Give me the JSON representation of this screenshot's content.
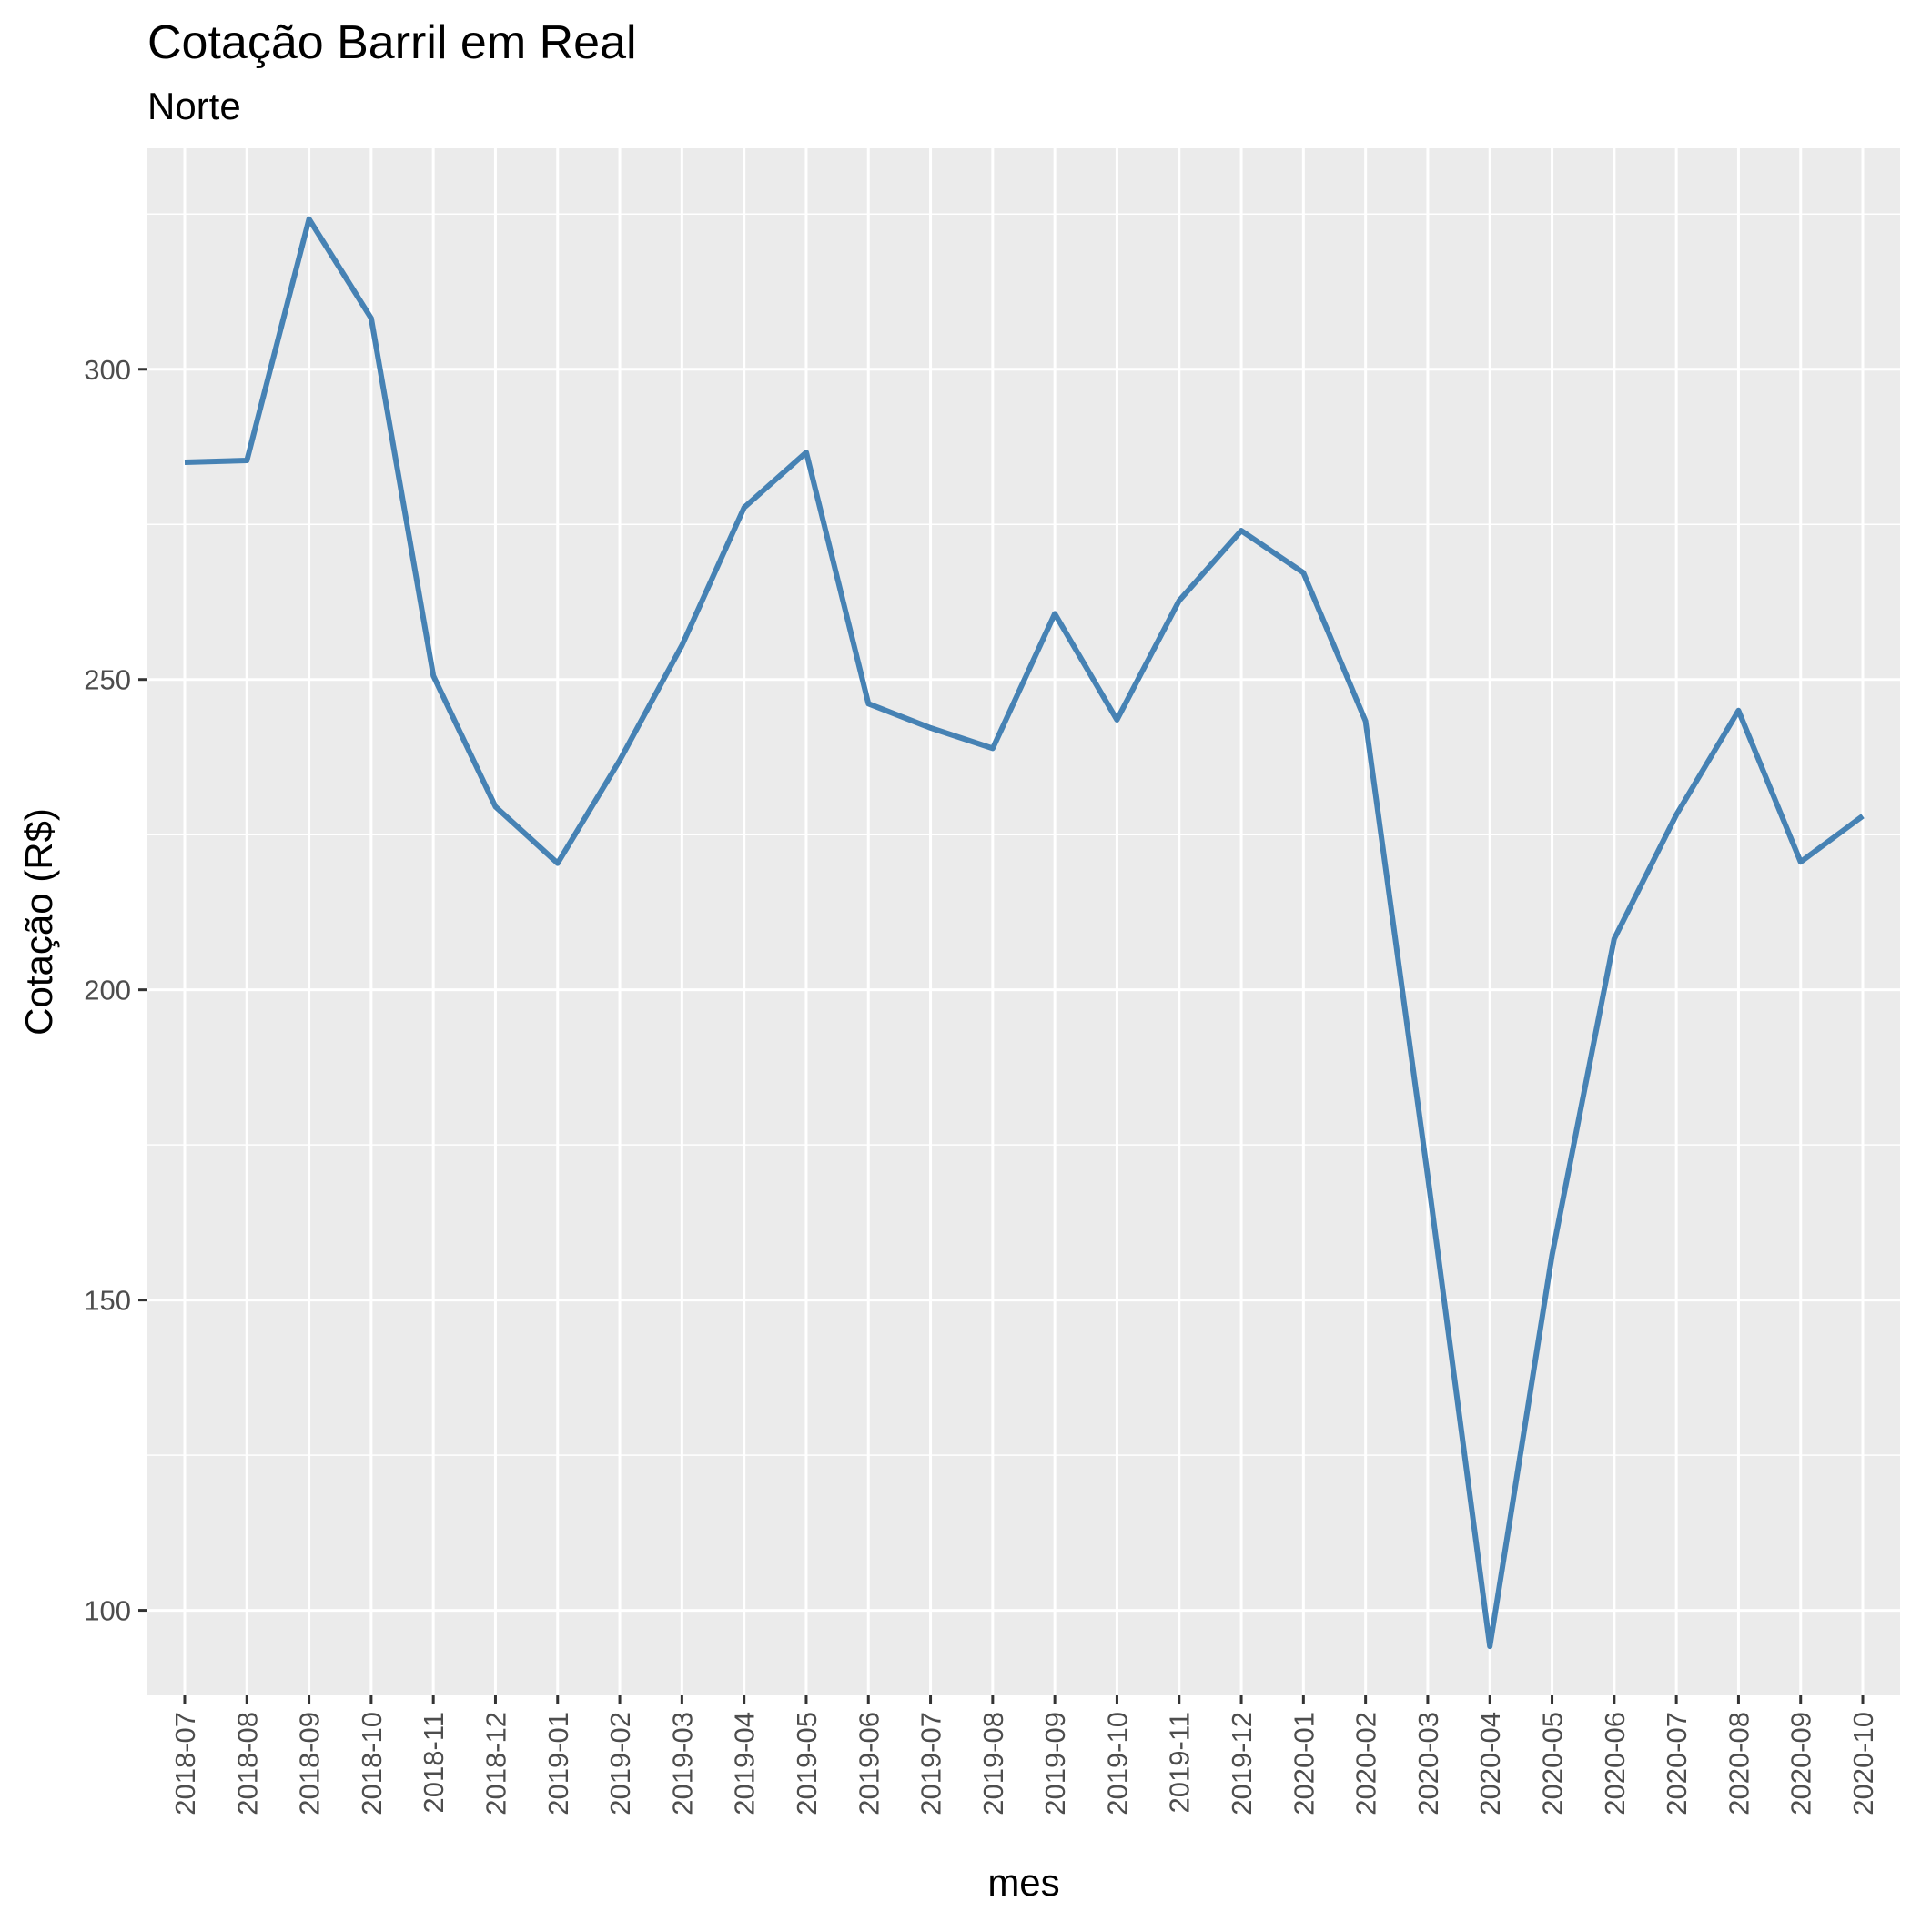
{
  "chart_data": {
    "type": "line",
    "title": "Cotação Barril em Real",
    "subtitle": "Norte",
    "xlabel": "mes",
    "ylabel": "Cotação (R$)",
    "categories": [
      "2018-07",
      "2018-08",
      "2018-09",
      "2018-10",
      "2018-11",
      "2018-12",
      "2019-01",
      "2019-02",
      "2019-03",
      "2019-04",
      "2019-05",
      "2019-06",
      "2019-07",
      "2019-08",
      "2019-09",
      "2019-10",
      "2019-11",
      "2019-12",
      "2020-01",
      "2020-02",
      "2020-03",
      "2020-04",
      "2020-05",
      "2020-06",
      "2020-07",
      "2020-08",
      "2020-09",
      "2020-10"
    ],
    "series": [
      {
        "values": [
          285,
          285.3,
          324.2,
          308.2,
          250.6,
          229.5,
          220.4,
          237,
          255.5,
          277.7,
          286.6,
          246.1,
          242.2,
          238.9,
          260.6,
          243.5,
          262.7,
          274.0,
          267.2,
          243.3,
          170.0,
          94.2,
          157.2,
          208.2,
          228.2,
          245.0,
          220.6,
          228.0
        ]
      }
    ],
    "yticks": [
      100,
      150,
      200,
      250,
      300
    ],
    "ylim": [
      86.3,
      335.6
    ],
    "grid": true,
    "legend": "none",
    "colors": {
      "line": "#4682B4",
      "panel_background": "#EBEBEB",
      "grid": "#FFFFFF",
      "tick_text": "#4D4D4D"
    }
  }
}
